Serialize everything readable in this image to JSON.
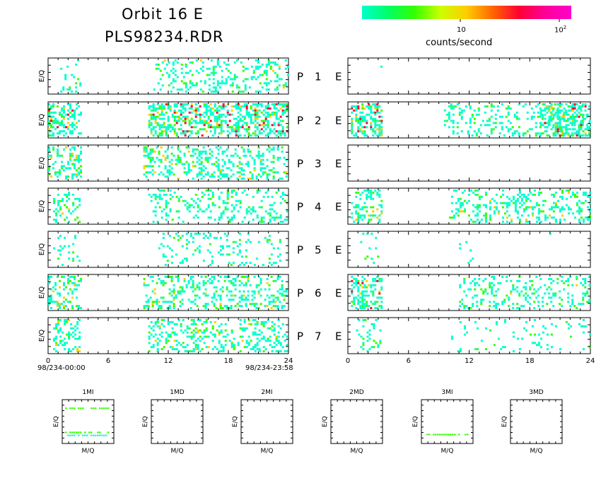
{
  "title_line1": "Orbit 16 E",
  "title_line2": "PLS98234.RDR",
  "colorbar": {
    "label": "counts/second",
    "tick_1": "10",
    "tick_2_base": "10",
    "tick_2_exp": "2",
    "colors": [
      "#00ffcc",
      "#00ff66",
      "#33ff00",
      "#ccff00",
      "#ffcc00",
      "#ff6600",
      "#ff0033",
      "#ff0099",
      "#ff00cc"
    ]
  },
  "time_start_label": "98/234-00:00",
  "time_end_label": "98/234-23:58",
  "colors": {
    "low": "#00ffcc",
    "mid": "#33ff00",
    "high": "#ffcc00",
    "peak": "#ff0033"
  },
  "chart_data": {
    "type": "heatmap",
    "scale": "log counts/second",
    "x_range_hours": [
      0,
      24
    ],
    "x_ticks": [
      "0",
      "6",
      "12",
      "18",
      "24"
    ],
    "ylabel": "E/Q",
    "rows": [
      {
        "channel": "P",
        "number": "1",
        "unit": "E",
        "left_activity": [
          [
            1,
            3.3,
            0.3
          ],
          [
            10.5,
            24,
            0.4
          ]
        ],
        "right_activity": [
          [
            3,
            3.5,
            0.02
          ]
        ]
      },
      {
        "channel": "P",
        "number": "2",
        "unit": "E",
        "left_activity": [
          [
            0,
            3.3,
            0.7
          ],
          [
            10,
            24,
            0.9
          ]
        ],
        "right_activity": [
          [
            0.3,
            3.5,
            0.9
          ],
          [
            9.5,
            24,
            0.35
          ],
          [
            19,
            24,
            0.8
          ]
        ]
      },
      {
        "channel": "P",
        "number": "3",
        "unit": "E",
        "left_activity": [
          [
            0,
            3.3,
            0.55
          ],
          [
            9.5,
            24,
            0.5
          ]
        ],
        "right_activity": [
          [
            3,
            3.5,
            0.02
          ],
          [
            16,
            16.5,
            0.01
          ]
        ]
      },
      {
        "channel": "P",
        "number": "4",
        "unit": "E",
        "left_activity": [
          [
            0.5,
            3.3,
            0.5
          ],
          [
            10,
            24,
            0.35
          ]
        ],
        "right_activity": [
          [
            0.3,
            3.5,
            0.6
          ],
          [
            10,
            24,
            0.45
          ]
        ]
      },
      {
        "channel": "P",
        "number": "5",
        "unit": "E",
        "left_activity": [
          [
            0.5,
            3.3,
            0.2
          ],
          [
            11,
            24,
            0.25
          ]
        ],
        "right_activity": [
          [
            1,
            3,
            0.08
          ],
          [
            11,
            13,
            0.05
          ],
          [
            19.5,
            20.5,
            0.05
          ]
        ]
      },
      {
        "channel": "P",
        "number": "6",
        "unit": "E",
        "left_activity": [
          [
            0,
            3.3,
            0.6
          ],
          [
            9.5,
            24,
            0.5
          ]
        ],
        "right_activity": [
          [
            0.3,
            3.5,
            0.8
          ],
          [
            11,
            24,
            0.4
          ]
        ]
      },
      {
        "channel": "P",
        "number": "7",
        "unit": "E",
        "left_activity": [
          [
            0.5,
            3.3,
            0.5
          ],
          [
            10,
            24,
            0.45
          ]
        ],
        "right_activity": [
          [
            0.8,
            3.3,
            0.3
          ],
          [
            10,
            24,
            0.12
          ]
        ]
      }
    ],
    "mass_panels": [
      {
        "label": "1MI",
        "xlabel": "M/Q",
        "ylabel": "E/Q",
        "lines": [
          [
            0.18,
            "mid"
          ],
          [
            0.73,
            "mid"
          ],
          [
            0.8,
            "low"
          ]
        ]
      },
      {
        "label": "1MD",
        "xlabel": "M/Q",
        "ylabel": "E/Q",
        "lines": []
      },
      {
        "label": "2MI",
        "xlabel": "M/Q",
        "ylabel": "E/Q",
        "lines": []
      },
      {
        "label": "2MD",
        "xlabel": "M/Q",
        "ylabel": "E/Q",
        "lines": []
      },
      {
        "label": "3MI",
        "xlabel": "M/Q",
        "ylabel": "E/Q",
        "lines": [
          [
            0.78,
            "mid"
          ]
        ]
      },
      {
        "label": "3MD",
        "xlabel": "M/Q",
        "ylabel": "E/Q",
        "lines": []
      }
    ]
  }
}
